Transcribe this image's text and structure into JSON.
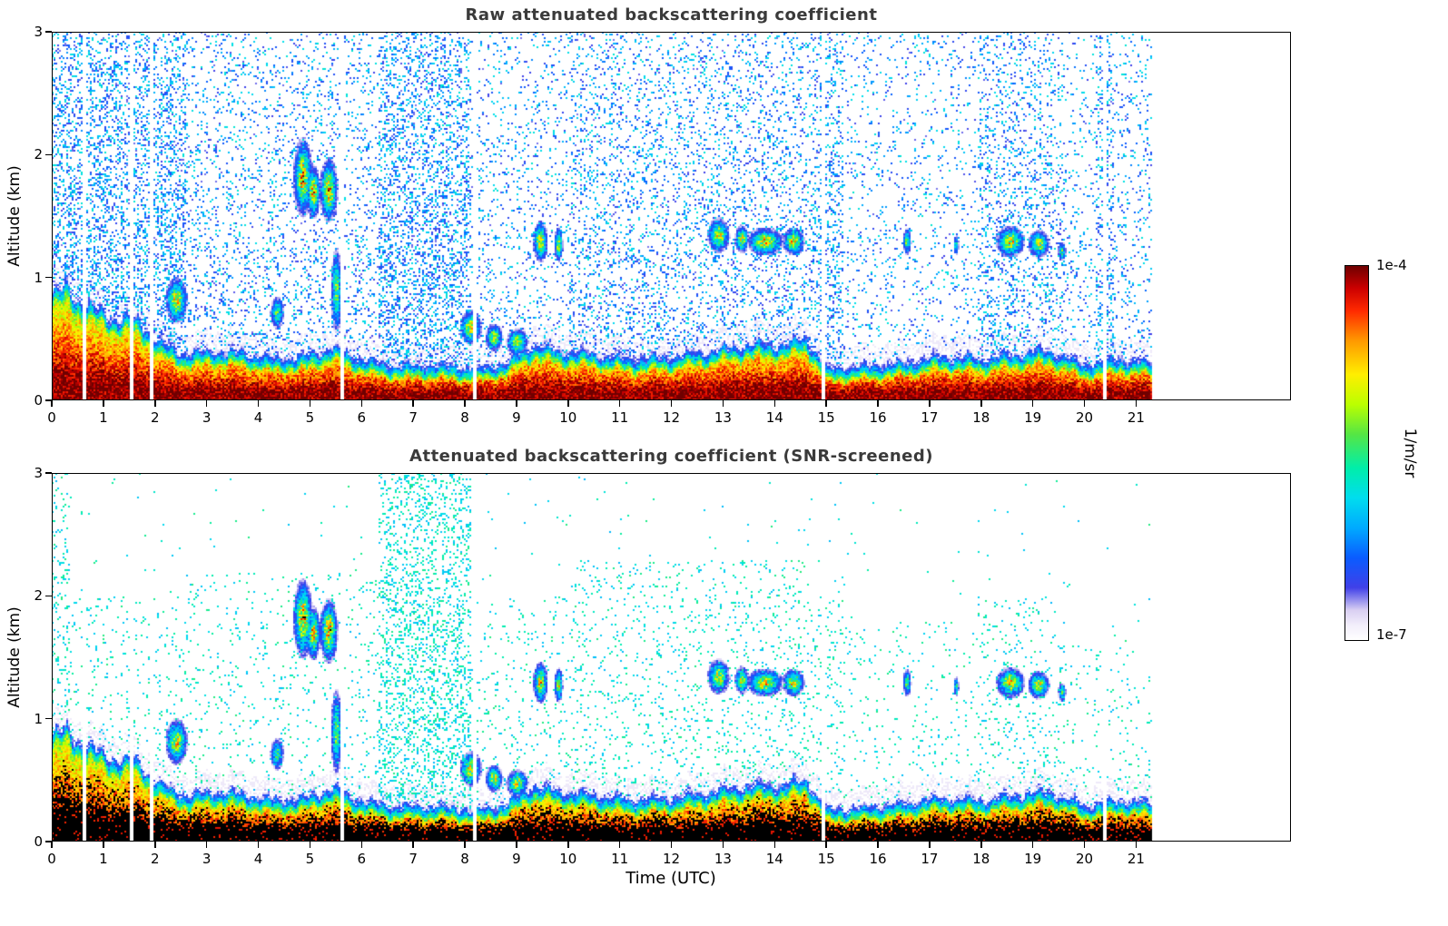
{
  "figure": {
    "background": "#ffffff",
    "colorbar": {
      "top_label": "1e-4",
      "bottom_label": "1e-7",
      "axis_label": "1/m/sr"
    }
  },
  "chart_data": [
    {
      "type": "heatmap",
      "title": "Raw attenuated backscattering coefficient",
      "xlabel": "",
      "ylabel": "Altitude (km)",
      "xlim": [
        0,
        24
      ],
      "ylim": [
        0,
        3
      ],
      "xticks": [
        0,
        1,
        2,
        3,
        4,
        5,
        6,
        7,
        8,
        9,
        10,
        11,
        12,
        13,
        14,
        15,
        16,
        17,
        18,
        19,
        20,
        21
      ],
      "yticks": [
        0,
        1,
        2,
        3
      ],
      "screened": false,
      "seed": 12345,
      "noise_low": 0.12,
      "noise_high": 0.42,
      "black_threshold": 2.0,
      "noise_bands": [
        [
          0,
          2.6,
          0.3,
          3
        ],
        [
          2.6,
          6.3,
          0.13,
          3
        ],
        [
          6.3,
          8.1,
          0.28,
          3
        ],
        [
          8.1,
          10,
          0.1,
          3
        ],
        [
          10,
          14.7,
          0.16,
          3
        ],
        [
          14.7,
          15.3,
          0.22,
          3
        ],
        [
          15.3,
          17.9,
          0.08,
          3
        ],
        [
          17.9,
          19.6,
          0.17,
          3
        ],
        [
          19.6,
          20.2,
          0.08,
          3
        ],
        [
          20.2,
          20.55,
          0.24,
          3
        ],
        [
          20.55,
          21.3,
          0.1,
          3
        ]
      ]
    },
    {
      "type": "heatmap",
      "title": "Attenuated backscattering coefficient (SNR-screened)",
      "xlabel": "Time (UTC)",
      "ylabel": "Altitude (km)",
      "xlim": [
        0,
        24
      ],
      "ylim": [
        0,
        3
      ],
      "xticks": [
        0,
        1,
        2,
        3,
        4,
        5,
        6,
        7,
        8,
        9,
        10,
        11,
        12,
        13,
        14,
        15,
        16,
        17,
        18,
        19,
        20,
        21
      ],
      "yticks": [
        0,
        1,
        2,
        3
      ],
      "screened": true,
      "seed": 67890,
      "noise_low": 0.32,
      "noise_high": 0.5,
      "black_threshold": 0.92,
      "noise_bands": [
        [
          0,
          0.35,
          0.12,
          3
        ],
        [
          0.35,
          2.6,
          0.06,
          2.0
        ],
        [
          2.6,
          6.3,
          0.05,
          2.2
        ],
        [
          6.3,
          8.1,
          0.22,
          3
        ],
        [
          8.1,
          10,
          0.05,
          2.0
        ],
        [
          10,
          14.7,
          0.07,
          2.3
        ],
        [
          14.7,
          15.3,
          0.07,
          2.0
        ],
        [
          15.3,
          17.9,
          0.035,
          1.8
        ],
        [
          17.9,
          19.6,
          0.06,
          2.0
        ],
        [
          19.6,
          21.3,
          0.04,
          1.6
        ]
      ]
    }
  ],
  "shared_model": {
    "data_end_time": 21.3,
    "colormap": [
      [
        0.0,
        "#ffffff"
      ],
      [
        0.04,
        "#f2eefb"
      ],
      [
        0.08,
        "#d9cff2"
      ],
      [
        0.14,
        "#4040e8"
      ],
      [
        0.22,
        "#0a5cff"
      ],
      [
        0.3,
        "#00aaff"
      ],
      [
        0.38,
        "#00ddee"
      ],
      [
        0.46,
        "#00eeaa"
      ],
      [
        0.55,
        "#55e644"
      ],
      [
        0.63,
        "#bbff00"
      ],
      [
        0.71,
        "#ffee00"
      ],
      [
        0.8,
        "#ff9900"
      ],
      [
        0.88,
        "#ff2a00"
      ],
      [
        0.94,
        "#cc0000"
      ],
      [
        1.0,
        "#6f0000"
      ]
    ],
    "bl_height_keyframes": [
      [
        0,
        0.9
      ],
      [
        0.3,
        0.95
      ],
      [
        0.7,
        0.8
      ],
      [
        1.2,
        0.72
      ],
      [
        1.7,
        0.68
      ],
      [
        2.1,
        0.5
      ],
      [
        2.6,
        0.42
      ],
      [
        3.2,
        0.45
      ],
      [
        3.8,
        0.42
      ],
      [
        4.3,
        0.38
      ],
      [
        4.9,
        0.4
      ],
      [
        5.4,
        0.48
      ],
      [
        5.8,
        0.4
      ],
      [
        6.5,
        0.33
      ],
      [
        7.5,
        0.33
      ],
      [
        8.2,
        0.3
      ],
      [
        8.8,
        0.35
      ],
      [
        9.3,
        0.5
      ],
      [
        9.8,
        0.45
      ],
      [
        10.5,
        0.42
      ],
      [
        11.2,
        0.38
      ],
      [
        12.0,
        0.4
      ],
      [
        12.8,
        0.45
      ],
      [
        13.5,
        0.5
      ],
      [
        14.2,
        0.5
      ],
      [
        14.6,
        0.55
      ],
      [
        15.0,
        0.3
      ],
      [
        15.8,
        0.32
      ],
      [
        16.5,
        0.35
      ],
      [
        17.2,
        0.4
      ],
      [
        18.0,
        0.38
      ],
      [
        18.7,
        0.42
      ],
      [
        19.3,
        0.45
      ],
      [
        20.0,
        0.33
      ],
      [
        20.7,
        0.38
      ],
      [
        21.3,
        0.35
      ]
    ],
    "clouds": [
      {
        "t": 2.4,
        "h": 0.82,
        "w": 0.15,
        "dh": 0.13,
        "a": 0.85
      },
      {
        "t": 4.35,
        "h": 0.72,
        "w": 0.1,
        "dh": 0.1,
        "a": 0.6
      },
      {
        "t": 4.85,
        "h": 1.82,
        "w": 0.13,
        "dh": 0.22,
        "a": 0.95
      },
      {
        "t": 5.05,
        "h": 1.7,
        "w": 0.1,
        "dh": 0.15,
        "a": 0.9
      },
      {
        "t": 5.35,
        "h": 1.72,
        "w": 0.12,
        "dh": 0.18,
        "a": 0.95
      },
      {
        "t": 5.5,
        "h": 0.9,
        "w": 0.08,
        "dh": 0.25,
        "a": 0.7
      },
      {
        "t": 8.1,
        "h": 0.6,
        "w": 0.15,
        "dh": 0.1,
        "a": 0.85
      },
      {
        "t": 8.55,
        "h": 0.52,
        "w": 0.12,
        "dh": 0.08,
        "a": 0.8
      },
      {
        "t": 9.0,
        "h": 0.48,
        "w": 0.15,
        "dh": 0.08,
        "a": 0.8
      },
      {
        "t": 9.45,
        "h": 1.3,
        "w": 0.1,
        "dh": 0.12,
        "a": 0.85
      },
      {
        "t": 9.8,
        "h": 1.28,
        "w": 0.06,
        "dh": 0.1,
        "a": 0.8
      },
      {
        "t": 12.9,
        "h": 1.35,
        "w": 0.15,
        "dh": 0.1,
        "a": 0.85
      },
      {
        "t": 13.35,
        "h": 1.32,
        "w": 0.1,
        "dh": 0.08,
        "a": 0.8
      },
      {
        "t": 13.8,
        "h": 1.3,
        "w": 0.25,
        "dh": 0.08,
        "a": 0.85
      },
      {
        "t": 14.35,
        "h": 1.3,
        "w": 0.15,
        "dh": 0.08,
        "a": 0.85
      },
      {
        "t": 16.55,
        "h": 1.3,
        "w": 0.06,
        "dh": 0.08,
        "a": 0.7
      },
      {
        "t": 17.5,
        "h": 1.27,
        "w": 0.04,
        "dh": 0.06,
        "a": 0.6
      },
      {
        "t": 18.55,
        "h": 1.3,
        "w": 0.2,
        "dh": 0.09,
        "a": 0.85
      },
      {
        "t": 19.1,
        "h": 1.28,
        "w": 0.15,
        "dh": 0.08,
        "a": 0.8
      },
      {
        "t": 19.55,
        "h": 1.22,
        "w": 0.06,
        "dh": 0.06,
        "a": 0.6
      }
    ],
    "gaps": [
      0.62,
      1.52,
      1.92,
      5.62,
      8.18,
      14.92,
      20.38
    ]
  }
}
